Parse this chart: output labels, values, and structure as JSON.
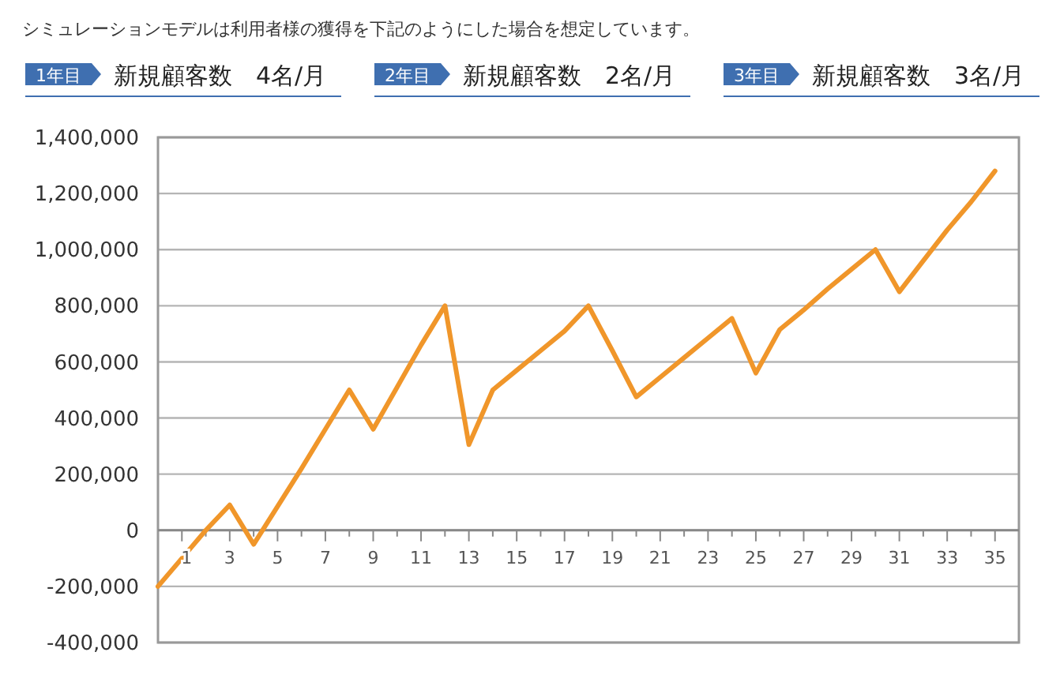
{
  "chart_data": {
    "type": "line",
    "title": "シミュレーションモデルは利用者様の獲得を下記のようにした場合を想定しています。",
    "annotations": [
      "1年目",
      "新規顧客数　4名/月",
      "2年目",
      "新規顧客数　2名/月",
      "3年目",
      "新規顧客数　3名/月"
    ],
    "x": [
      0,
      1,
      2,
      3,
      4,
      5,
      6,
      7,
      8,
      9,
      10,
      11,
      12,
      13,
      14,
      15,
      16,
      17,
      18,
      19,
      20,
      21,
      22,
      23,
      24,
      25,
      26,
      27,
      28,
      29,
      30,
      31,
      32,
      33,
      34,
      35
    ],
    "series": [
      {
        "color": "#f0962a",
        "values": [
          -200000,
          -100000,
          0,
          90000,
          -50000,
          85000,
          220000,
          360000,
          500000,
          360000,
          510000,
          660000,
          800000,
          305000,
          500000,
          570000,
          640000,
          710000,
          800000,
          640000,
          475000,
          545000,
          615000,
          685000,
          755000,
          560000,
          715000,
          785000,
          860000,
          930000,
          1000000,
          850000,
          960000,
          1070000,
          1170000,
          1280000
        ]
      }
    ],
    "xlim": [
      0,
      36
    ],
    "xticks": [
      {
        "value": 1,
        "label": "1"
      },
      {
        "value": 2,
        "label": null
      },
      {
        "value": 3,
        "label": "3"
      },
      {
        "value": 4,
        "label": null
      },
      {
        "value": 5,
        "label": "5"
      },
      {
        "value": 6,
        "label": null
      },
      {
        "value": 7,
        "label": "7"
      },
      {
        "value": 8,
        "label": null
      },
      {
        "value": 9,
        "label": "9"
      },
      {
        "value": 10,
        "label": null
      },
      {
        "value": 11,
        "label": "11"
      },
      {
        "value": 12,
        "label": null
      },
      {
        "value": 13,
        "label": "13"
      },
      {
        "value": 14,
        "label": null
      },
      {
        "value": 15,
        "label": "15"
      },
      {
        "value": 16,
        "label": null
      },
      {
        "value": 17,
        "label": "17"
      },
      {
        "value": 18,
        "label": null
      },
      {
        "value": 19,
        "label": "19"
      },
      {
        "value": 20,
        "label": null
      },
      {
        "value": 21,
        "label": "21"
      },
      {
        "value": 22,
        "label": null
      },
      {
        "value": 23,
        "label": "23"
      },
      {
        "value": 24,
        "label": null
      },
      {
        "value": 25,
        "label": "25"
      },
      {
        "value": 26,
        "label": null
      },
      {
        "value": 27,
        "label": "27"
      },
      {
        "value": 28,
        "label": null
      },
      {
        "value": 29,
        "label": "29"
      },
      {
        "value": 30,
        "label": null
      },
      {
        "value": 31,
        "label": "31"
      },
      {
        "value": 32,
        "label": null
      },
      {
        "value": 33,
        "label": "33"
      },
      {
        "value": 34,
        "label": null
      },
      {
        "value": 35,
        "label": "35"
      }
    ],
    "ylim": [
      -400000,
      1400000
    ],
    "yticks": [
      {
        "value": -400000,
        "label": "-400,000"
      },
      {
        "value": -200000,
        "label": "-200,000"
      },
      {
        "value": 0,
        "label": "0"
      },
      {
        "value": 200000,
        "label": "200,000"
      },
      {
        "value": 400000,
        "label": "400,000"
      },
      {
        "value": 600000,
        "label": "600,000"
      },
      {
        "value": 800000,
        "label": "800,000"
      },
      {
        "value": 1000000,
        "label": "1,000,000"
      },
      {
        "value": 1200000,
        "label": "1,200,000"
      },
      {
        "value": 1400000,
        "label": "1,400,000"
      }
    ],
    "grid": "y",
    "marker": "none",
    "line_style": "solid"
  }
}
